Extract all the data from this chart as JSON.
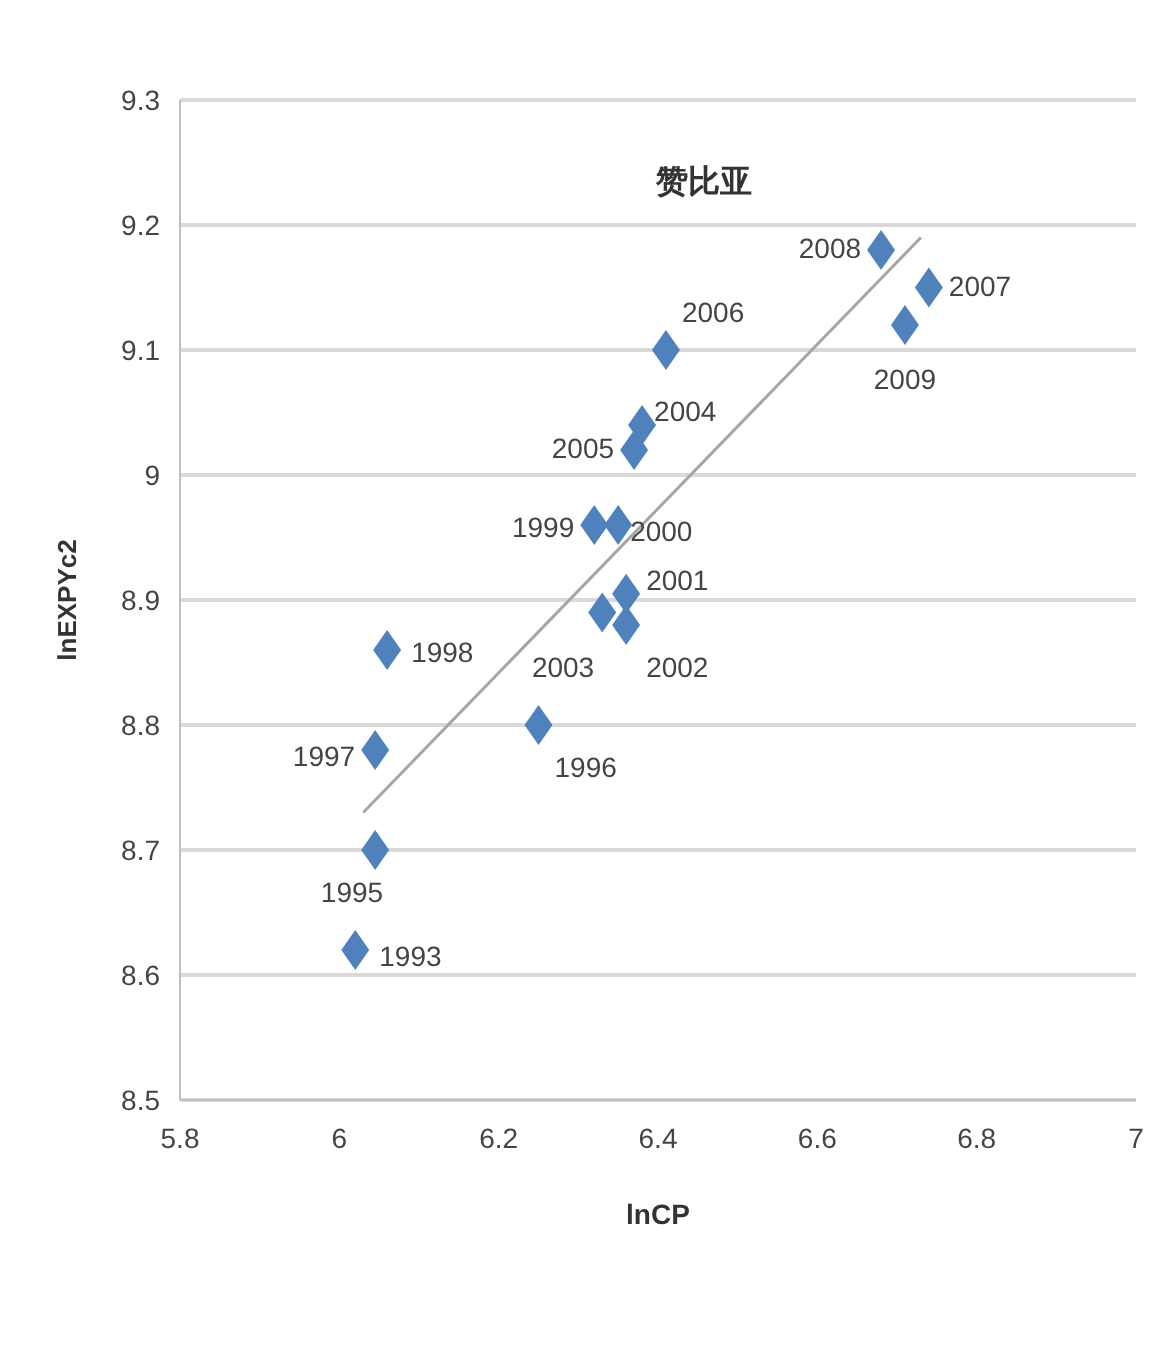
{
  "chart_data": {
    "type": "scatter",
    "title": "赞比亚",
    "xlabel": "lnCP",
    "ylabel": "lnEXPYc2",
    "xlim": [
      5.8,
      7
    ],
    "xticks": [
      5.8,
      6,
      6.2,
      6.4,
      6.6,
      6.8,
      7
    ],
    "ylim": [
      8.5,
      9.3
    ],
    "yticks": [
      8.5,
      8.6,
      8.7,
      8.8,
      8.9,
      {
        "value": 9,
        "label": "9"
      },
      9.1,
      9.2,
      9.3
    ],
    "grid": "y",
    "marker": "diamond",
    "series": [
      {
        "color": "#4f81bd",
        "x": [
          6.02,
          6.045,
          6.25,
          6.045,
          6.06,
          6.32,
          6.35,
          6.36,
          6.36,
          6.33,
          6.38,
          6.37,
          6.41,
          6.74,
          6.68,
          6.71
        ],
        "values": [
          8.62,
          8.7,
          8.8,
          8.78,
          8.86,
          8.96,
          8.96,
          8.905,
          8.88,
          8.89,
          9.04,
          9.02,
          9.1,
          9.15,
          9.18,
          9.12
        ]
      },
      {
        "type": "line",
        "marker": "none",
        "color": "#a6a6a6",
        "x": [
          6.03,
          6.73
        ],
        "values": [
          8.73,
          9.19
        ]
      }
    ],
    "annotations": [
      {
        "text": "1993",
        "x": 6.02,
        "y": 8.62
      },
      {
        "text": "1995",
        "x": 6.045,
        "y": 8.7
      },
      {
        "text": "1996",
        "x": 6.25,
        "y": 8.8
      },
      {
        "text": "1997",
        "x": 6.045,
        "y": 8.78
      },
      {
        "text": "1998",
        "x": 6.06,
        "y": 8.86
      },
      {
        "text": "1999",
        "x": 6.32,
        "y": 8.96
      },
      {
        "text": "2000",
        "x": 6.35,
        "y": 8.96
      },
      {
        "text": "2001",
        "x": 6.36,
        "y": 8.905
      },
      {
        "text": "2002",
        "x": 6.36,
        "y": 8.88
      },
      {
        "text": "2003",
        "x": 6.33,
        "y": 8.89
      },
      {
        "text": "2004",
        "x": 6.38,
        "y": 9.04
      },
      {
        "text": "2005",
        "x": 6.37,
        "y": 9.02
      },
      {
        "text": "2006",
        "x": 6.41,
        "y": 9.1
      },
      {
        "text": "2007",
        "x": 6.74,
        "y": 9.15
      },
      {
        "text": "2008",
        "x": 6.68,
        "y": 9.18
      },
      {
        "text": "2009",
        "x": 6.71,
        "y": 9.12
      }
    ]
  }
}
